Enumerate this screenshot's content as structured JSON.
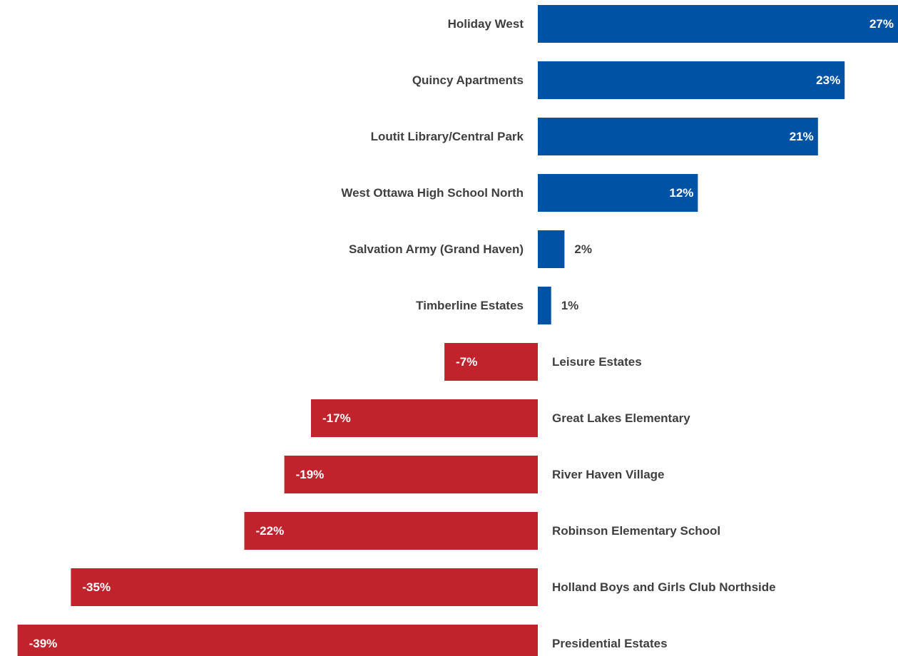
{
  "chart_data": {
    "type": "bar",
    "orientation": "horizontal",
    "categories": [
      "Holiday West",
      "Quincy Apartments",
      "Loutit Library/Central Park",
      "West Ottawa High School North",
      "Salvation Army (Grand Haven)",
      "Timberline Estates",
      "Leisure Estates",
      "Great Lakes Elementary",
      "River Haven Village",
      "Robinson Elementary School",
      "Holland Boys and Girls Club Northside",
      "Presidential Estates"
    ],
    "values": [
      27,
      23,
      21,
      12,
      2,
      1,
      -7,
      -17,
      -19,
      -22,
      -35,
      -39
    ],
    "value_labels": [
      "27%",
      "23%",
      "21%",
      "12%",
      "2%",
      "1%",
      "-7%",
      "-17%",
      "-19%",
      "-22%",
      "-35%",
      "-39%"
    ],
    "unit": "%",
    "xlim": [
      -39.7,
      27
    ],
    "positive_color": "#0052A5",
    "negative_color": "#C0232C",
    "label_color": "#3F3F3F",
    "inside_label_color": "#FFFFFF",
    "grid": false,
    "legend": "none"
  }
}
